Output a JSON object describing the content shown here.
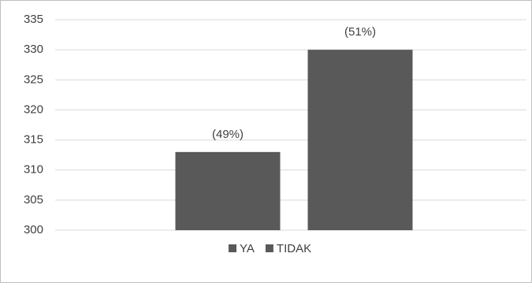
{
  "chart_data": {
    "type": "bar",
    "categories": [
      null
    ],
    "series": [
      {
        "name": "YA",
        "color": "#595959",
        "values": [
          313
        ],
        "label": "(49%)"
      },
      {
        "name": "TIDAK",
        "color": "#595959",
        "values": [
          330
        ],
        "label": "(51%)"
      }
    ],
    "ylim": [
      300,
      335
    ],
    "yticks": [
      300,
      305,
      310,
      315,
      320,
      325,
      330,
      335
    ],
    "grid": true
  }
}
